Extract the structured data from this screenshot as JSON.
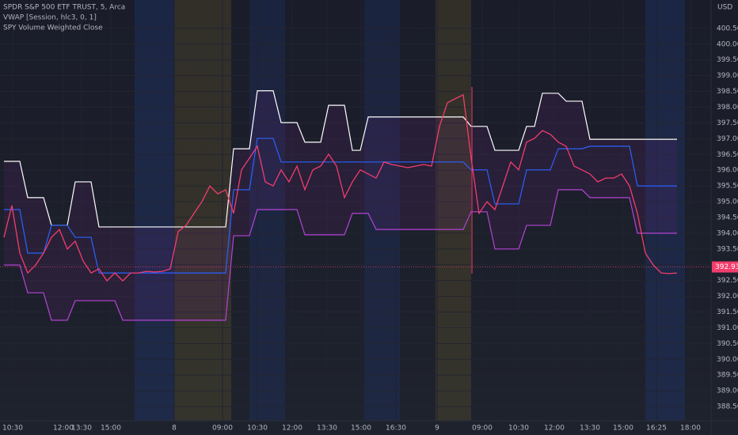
{
  "chart_data": {
    "type": "line",
    "title": "SPDR S&P 500 ETF TRUST, 5, Arca",
    "y_unit": "USD",
    "x_labels": [
      "10:30",
      "12:00",
      "13:30",
      "15:00",
      "8",
      "09:00",
      "10:30",
      "12:00",
      "13:30",
      "15:00",
      "16:30",
      "9",
      "09:00",
      "10:30",
      "12:00",
      "13:30",
      "15:00",
      "16:25",
      "18:00"
    ],
    "ylim": [
      388.05,
      401.4
    ],
    "yticks": [
      {
        "value": 388.5,
        "label": "388.50"
      },
      {
        "value": 389,
        "label": "389.00"
      },
      {
        "value": 389.5,
        "label": "389.50"
      },
      {
        "value": 390,
        "label": "390.00"
      },
      {
        "value": 390.5,
        "label": "390.50"
      },
      {
        "value": 391,
        "label": "391.00"
      },
      {
        "value": 391.5,
        "label": "391.50"
      },
      {
        "value": 392,
        "label": "392.00"
      },
      {
        "value": 392.5,
        "label": "392.50"
      },
      {
        "value": 393,
        "label": "393.00"
      },
      {
        "value": 393.5,
        "label": "393.50"
      },
      {
        "value": 394,
        "label": "394.00"
      },
      {
        "value": 394.5,
        "label": "394.50"
      },
      {
        "value": 395,
        "label": "395.00"
      },
      {
        "value": 395.5,
        "label": "395.50"
      },
      {
        "value": 396,
        "label": "396.00"
      },
      {
        "value": 396.5,
        "label": "396.50"
      },
      {
        "value": 397,
        "label": "397.00"
      },
      {
        "value": 397.5,
        "label": "397.50"
      },
      {
        "value": 398,
        "label": "398.00"
      },
      {
        "value": 398.5,
        "label": "398.50"
      },
      {
        "value": 399,
        "label": "399.00"
      },
      {
        "value": 399.5,
        "label": "399.50"
      },
      {
        "value": 400,
        "label": "400.00"
      },
      {
        "value": 400.5,
        "label": "400.50"
      }
    ],
    "last_price": 392.93,
    "series": [
      {
        "name": "SPY Volume Weighted Close",
        "color": "#f23d6d",
        "values": [
          393.87,
          394.88,
          393.37,
          392.74,
          392.99,
          393.37,
          393.87,
          394.12,
          393.5,
          393.75,
          393.12,
          392.74,
          392.87,
          392.49,
          392.74,
          392.49,
          392.74,
          392.74,
          392.79,
          392.77,
          392.79,
          392.87,
          394.05,
          394.25,
          394.63,
          395,
          395.5,
          395.25,
          395.38,
          394.63,
          396.01,
          396.38,
          396.76,
          395.63,
          395.5,
          396.01,
          395.63,
          396.13,
          395.38,
          396.01,
          396.13,
          396.51,
          396.13,
          395.13,
          395.63,
          396.01,
          395.88,
          395.75,
          396.26,
          396.18,
          396.13,
          396.08,
          396.13,
          396.18,
          396.13,
          397.39,
          398.14,
          398.27,
          398.39,
          396.38,
          394.63,
          395,
          394.75,
          395.5,
          396.26,
          396.01,
          396.89,
          397.01,
          397.26,
          397.14,
          396.89,
          396.76,
          396.13,
          396.01,
          395.88,
          395.63,
          395.75,
          395.75,
          395.88,
          395.5,
          394.63,
          393.37,
          392.99,
          392.74,
          392.72,
          392.74
        ]
      },
      {
        "name": "VWAP [Session, hlc3, 0, 1]",
        "color": "#2962ff",
        "values": [
          394.75,
          394.75,
          394.75,
          393.37,
          393.37,
          393.37,
          394.25,
          394.25,
          394.25,
          393.87,
          393.87,
          393.87,
          392.74,
          392.74,
          392.74,
          392.74,
          392.74,
          392.74,
          392.74,
          392.74,
          392.74,
          392.74,
          392.74,
          392.74,
          392.74,
          392.74,
          392.74,
          392.74,
          392.74,
          395.38,
          395.38,
          395.38,
          397.01,
          397.01,
          397.01,
          396.26,
          396.26,
          396.26,
          396.26,
          396.26,
          396.26,
          396.26,
          396.26,
          396.26,
          396.26,
          396.26,
          396.26,
          396.26,
          396.26,
          396.26,
          396.26,
          396.26,
          396.26,
          396.26,
          396.26,
          396.26,
          396.26,
          396.26,
          396.26,
          396.01,
          396.01,
          396.01,
          394.93,
          394.93,
          394.93,
          394.93,
          396.01,
          396.01,
          396.01,
          396.01,
          396.68,
          396.68,
          396.68,
          396.68,
          396.76,
          396.76,
          396.76,
          396.76,
          396.76,
          396.76,
          395.5,
          395.5,
          395.5,
          395.5,
          395.5,
          395.5
        ]
      },
      {
        "color": "#ffffff",
        "values": [
          396.28,
          396.28,
          396.28,
          395.13,
          395.13,
          395.13,
          394.25,
          394.25,
          394.25,
          395.63,
          395.63,
          395.63,
          394.2,
          394.2,
          394.2,
          394.2,
          394.2,
          394.2,
          394.2,
          394.2,
          394.2,
          394.2,
          394.2,
          394.2,
          394.2,
          394.2,
          394.2,
          394.2,
          394.2,
          396.68,
          396.68,
          396.68,
          398.52,
          398.52,
          398.52,
          397.51,
          397.51,
          397.51,
          396.89,
          396.89,
          396.89,
          398.06,
          398.06,
          398.06,
          396.63,
          396.63,
          397.69,
          397.69,
          397.69,
          397.69,
          397.69,
          397.69,
          397.69,
          397.69,
          397.69,
          397.69,
          397.69,
          397.69,
          397.69,
          397.39,
          397.39,
          397.39,
          396.63,
          396.63,
          396.63,
          396.63,
          397.39,
          397.39,
          398.44,
          398.44,
          398.44,
          398.19,
          398.19,
          398.19,
          396.98,
          396.98,
          396.98,
          396.98,
          396.98,
          396.98,
          396.98,
          396.98,
          396.98,
          396.98,
          396.98,
          396.98
        ]
      },
      {
        "color": "#b543d6",
        "values": [
          392.99,
          392.99,
          392.99,
          392.11,
          392.11,
          392.11,
          391.24,
          391.24,
          391.24,
          391.86,
          391.86,
          391.86,
          391.86,
          391.86,
          391.86,
          391.24,
          391.24,
          391.24,
          391.24,
          391.24,
          391.24,
          391.24,
          391.24,
          391.24,
          391.24,
          391.24,
          391.24,
          391.24,
          391.24,
          393.92,
          393.92,
          393.92,
          394.75,
          394.75,
          394.75,
          394.75,
          394.75,
          394.75,
          393.95,
          393.95,
          393.95,
          393.95,
          393.95,
          393.95,
          394.63,
          394.63,
          394.63,
          394.12,
          394.12,
          394.12,
          394.12,
          394.12,
          394.12,
          394.12,
          394.12,
          394.12,
          394.12,
          394.12,
          394.12,
          394.68,
          394.68,
          394.68,
          393.5,
          393.5,
          393.5,
          393.5,
          394.25,
          394.25,
          394.25,
          394.25,
          395.38,
          395.38,
          395.38,
          395.38,
          395.13,
          395.13,
          395.13,
          395.13,
          395.13,
          395.13,
          394,
          394,
          394,
          394,
          394,
          394
        ]
      }
    ]
  }
}
